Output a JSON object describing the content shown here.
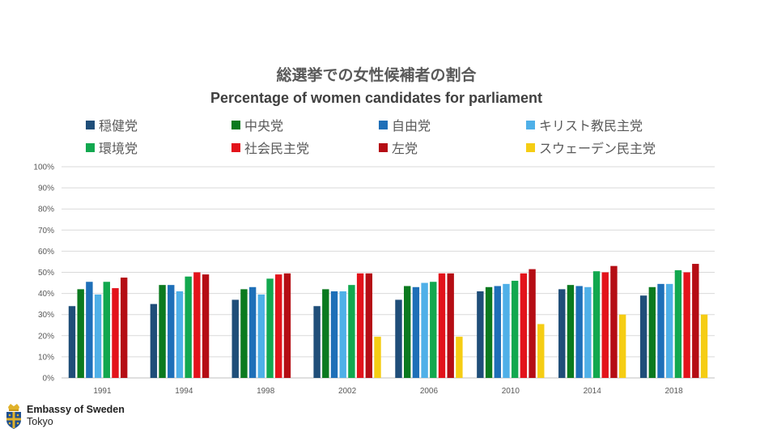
{
  "chart_data": {
    "type": "bar",
    "title": "総選挙での女性候補者の割合",
    "subtitle": "Percentage of women candidates for parliament",
    "xlabel": "",
    "ylabel": "",
    "ylim": [
      0,
      100
    ],
    "yticks": [
      "0%",
      "10%",
      "20%",
      "30%",
      "40%",
      "50%",
      "60%",
      "70%",
      "80%",
      "90%",
      "100%"
    ],
    "grid": true,
    "legend_position": "top",
    "categories": [
      "1991",
      "1994",
      "1998",
      "2002",
      "2006",
      "2010",
      "2014",
      "2018"
    ],
    "series": [
      {
        "name": "穏健党",
        "color": "#1f4e79",
        "values": [
          34,
          35,
          37,
          34,
          37,
          41,
          42,
          39
        ]
      },
      {
        "name": "中央党",
        "color": "#0b7a1f",
        "values": [
          42,
          44,
          42,
          42,
          43.5,
          43,
          44,
          43
        ]
      },
      {
        "name": "自由党",
        "color": "#1e6fb8",
        "values": [
          45.5,
          44,
          43,
          41,
          43,
          43.5,
          43.5,
          44.5
        ]
      },
      {
        "name": "キリスト教民主党",
        "color": "#4fb0e8",
        "values": [
          39.5,
          41,
          39.5,
          41,
          45,
          44.5,
          43,
          44.5
        ]
      },
      {
        "name": "環境党",
        "color": "#12a84f",
        "values": [
          45.5,
          48,
          47,
          44,
          45.5,
          46,
          50.5,
          51
        ]
      },
      {
        "name": "社会民主党",
        "color": "#e3131b",
        "values": [
          42.5,
          50,
          49,
          49.5,
          49.5,
          49.5,
          50,
          50
        ]
      },
      {
        "name": "左党",
        "color": "#b50d14",
        "values": [
          47.5,
          49,
          49.5,
          49.5,
          49.5,
          51.5,
          53,
          54
        ]
      },
      {
        "name": "スウェーデン民主党",
        "color": "#f5cd14",
        "values": [
          null,
          null,
          null,
          19.5,
          19.5,
          25.5,
          30,
          30
        ]
      }
    ]
  },
  "branding": {
    "line1": "Embassy of Sweden",
    "line2": "Tokyo"
  },
  "icons": {
    "logo": "swedish-royal-coat-of-arms-icon"
  }
}
